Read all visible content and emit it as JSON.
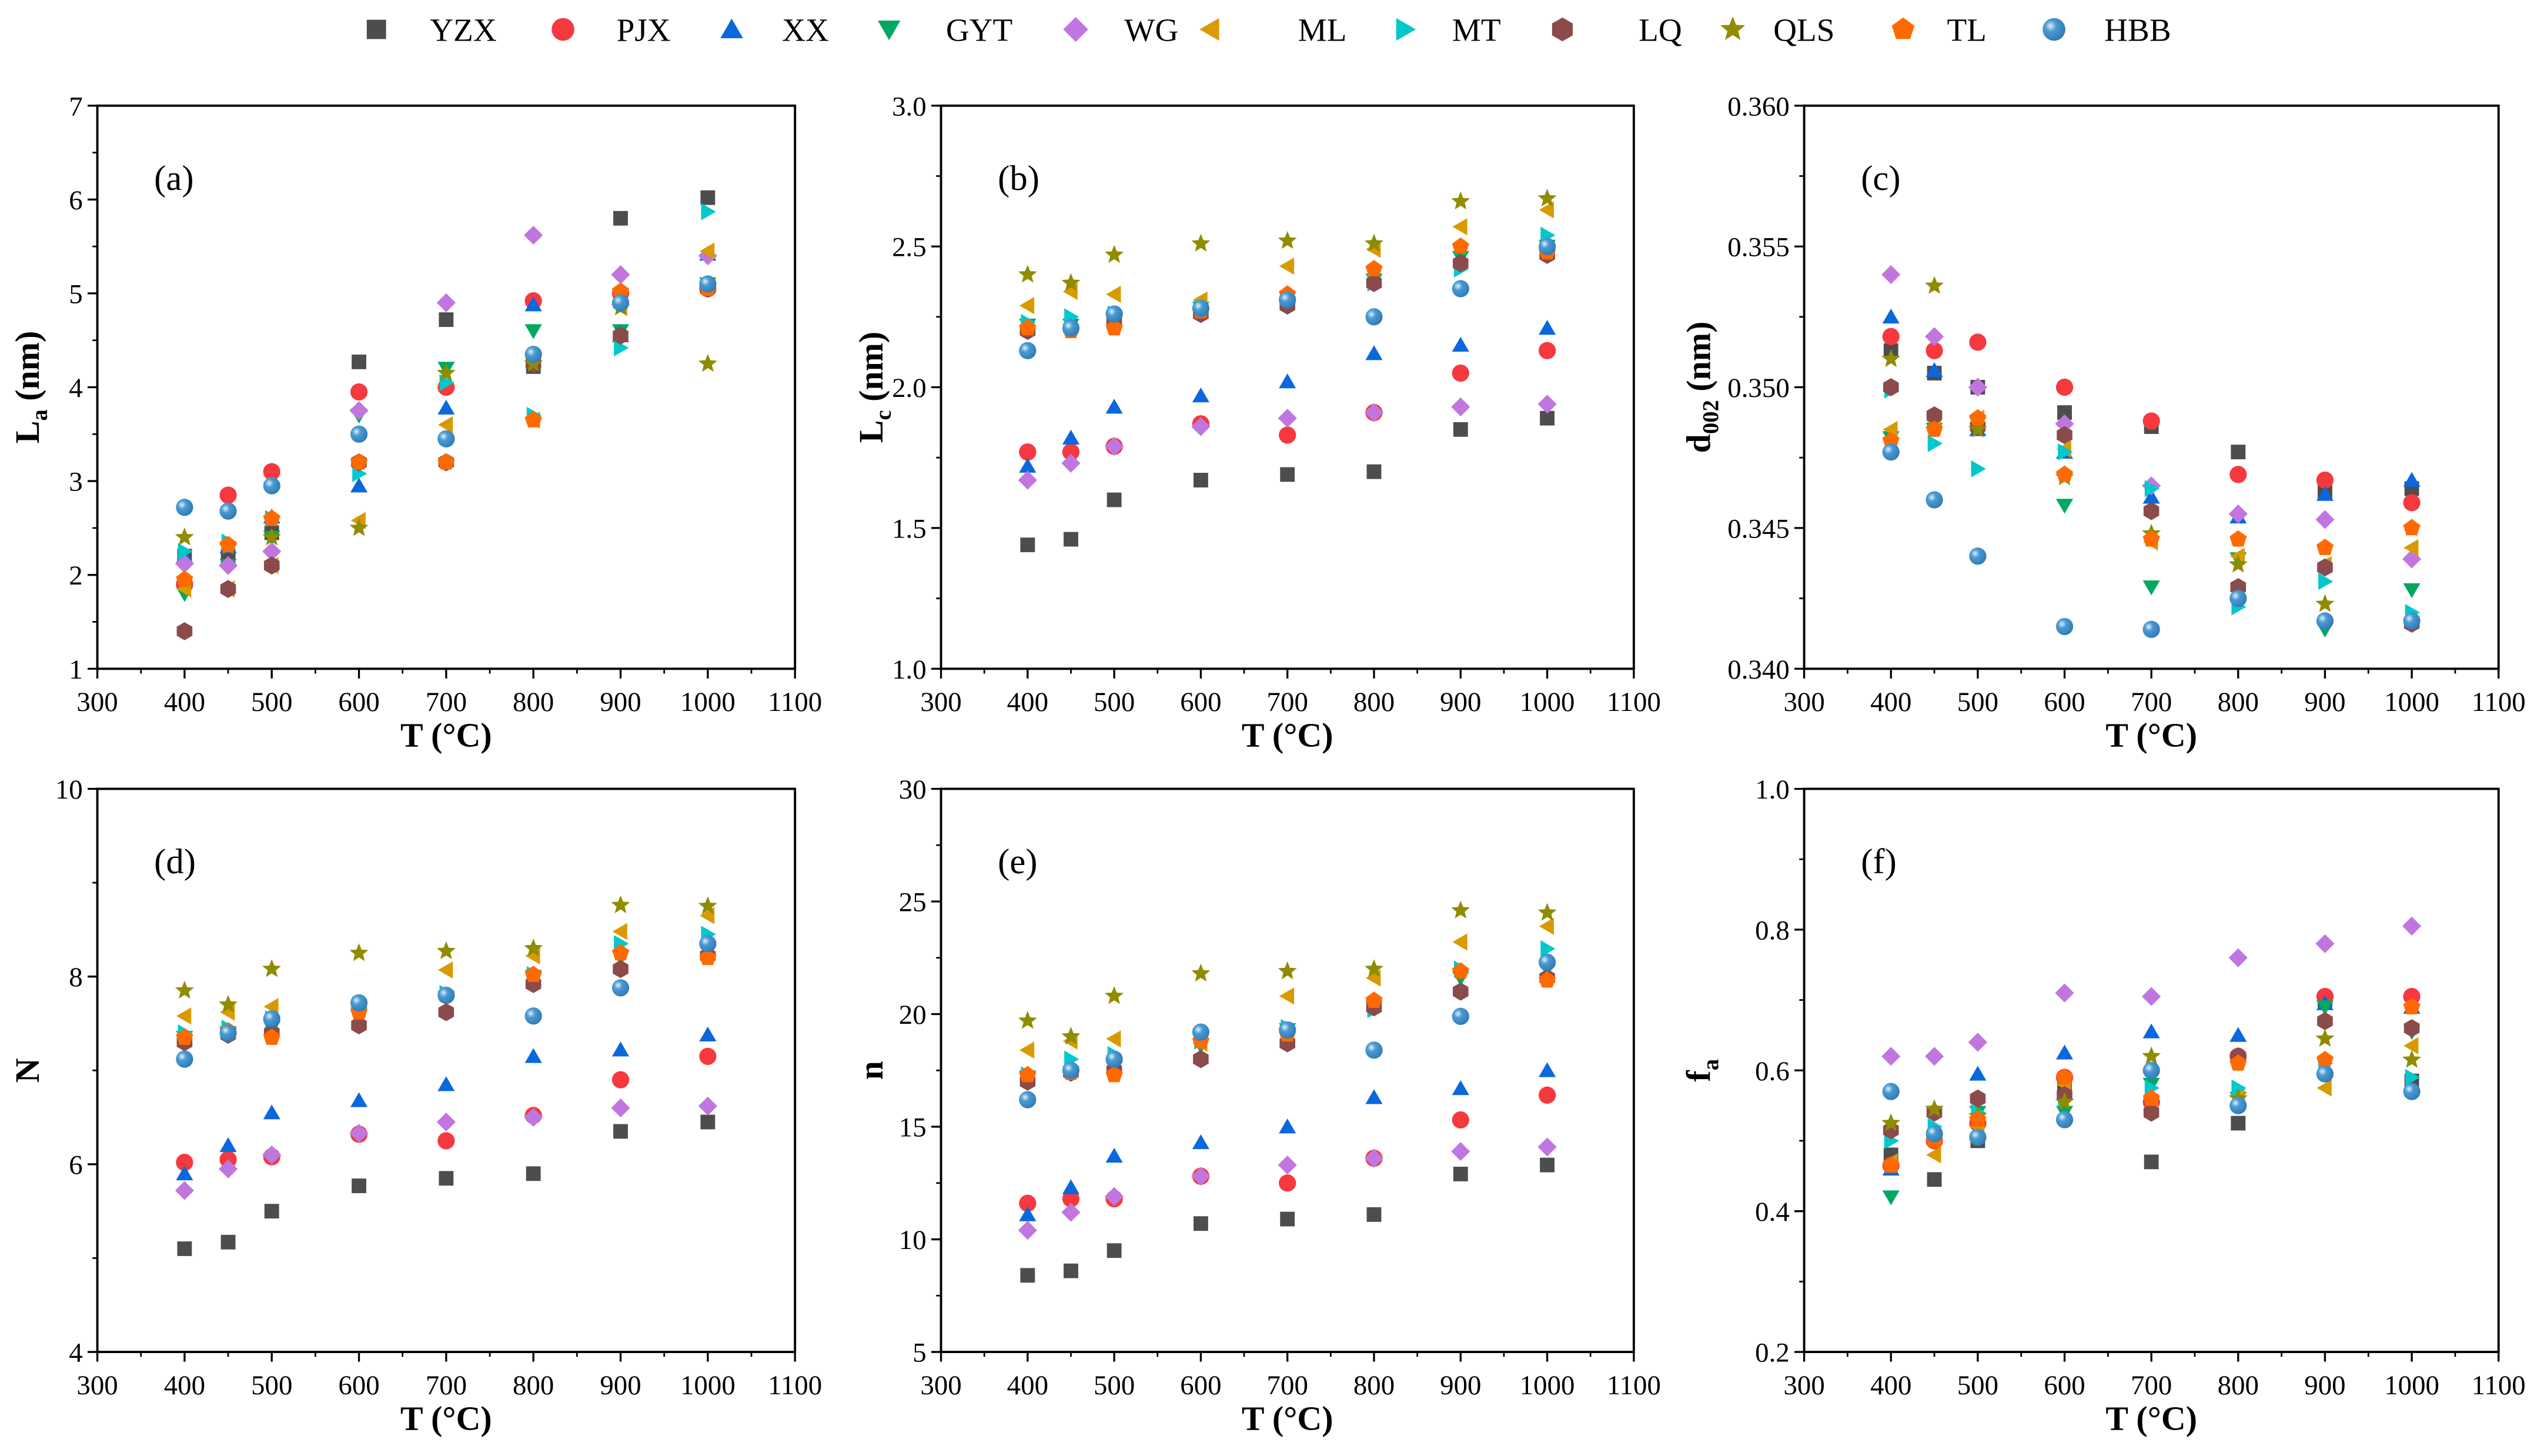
{
  "chart_data": {
    "type": "scatter",
    "x": [
      400,
      450,
      500,
      600,
      700,
      800,
      900,
      1000
    ],
    "series": [
      {
        "name": "YZX",
        "marker": "square",
        "color": "#4d4d4d"
      },
      {
        "name": "PJX",
        "marker": "circle",
        "color": "#f5393e"
      },
      {
        "name": "XX",
        "marker": "triangle-up",
        "color": "#0a68dc"
      },
      {
        "name": "GYT",
        "marker": "triangle-down",
        "color": "#00a862"
      },
      {
        "name": "WG",
        "marker": "diamond",
        "color": "#c176df"
      },
      {
        "name": "ML",
        "marker": "triangle-left",
        "color": "#d99a00"
      },
      {
        "name": "MT",
        "marker": "triangle-right",
        "color": "#00c8cc"
      },
      {
        "name": "LQ",
        "marker": "hexagon",
        "color": "#8b4b4b"
      },
      {
        "name": "QLS",
        "marker": "star",
        "color": "#8f8c00"
      },
      {
        "name": "TL",
        "marker": "pentagon",
        "color": "#ff6a00"
      },
      {
        "name": "HBB",
        "marker": "sphere",
        "color": "#4a9ad2"
      }
    ],
    "legend_placement": "top",
    "panels": [
      {
        "label": "(a)",
        "ylabel": {
          "main": "L",
          "sub": "a",
          "unit": " (nm)"
        },
        "xlabel": "T (°C)",
        "xlim": [
          300,
          1100
        ],
        "xticks": [
          300,
          400,
          500,
          600,
          700,
          800,
          900,
          1000,
          1100
        ],
        "ylim": [
          1,
          7
        ],
        "yticks": [
          "1",
          "2",
          "3",
          "4",
          "5",
          "6",
          "7"
        ],
        "values": [
          [
            2.2,
            2.2,
            2.45,
            4.27,
            4.72,
            4.22,
            5.8,
            6.02
          ],
          [
            1.9,
            2.85,
            3.1,
            3.95,
            4.0,
            4.92,
            5.0,
            5.05
          ],
          [
            2.2,
            2.3,
            2.62,
            2.95,
            3.78,
            4.88,
            4.55,
            5.42
          ],
          [
            1.8,
            2.1,
            2.4,
            3.7,
            4.2,
            4.6,
            4.6,
            5.1
          ],
          [
            2.12,
            2.1,
            2.25,
            3.75,
            4.9,
            5.62,
            5.2,
            5.4
          ],
          [
            1.85,
            1.85,
            2.1,
            2.58,
            3.6,
            3.65,
            4.85,
            5.45
          ],
          [
            2.25,
            2.35,
            2.6,
            3.08,
            4.05,
            3.7,
            4.42,
            5.87
          ],
          [
            1.4,
            1.85,
            2.1,
            3.2,
            3.2,
            4.25,
            4.55,
            5.05
          ],
          [
            2.4,
            2.3,
            2.4,
            2.5,
            4.15,
            4.25,
            4.85,
            4.25
          ],
          [
            1.95,
            2.32,
            2.6,
            3.2,
            3.2,
            3.65,
            5.02,
            5.05
          ],
          [
            2.72,
            2.68,
            2.95,
            3.5,
            3.45,
            4.35,
            4.9,
            5.1
          ]
        ]
      },
      {
        "label": "(b)",
        "ylabel": {
          "main": "L",
          "sub": "c",
          "unit": " (nm)"
        },
        "xlabel": "T (°C)",
        "xlim": [
          300,
          1100
        ],
        "xticks": [
          300,
          400,
          500,
          600,
          700,
          800,
          900,
          1000,
          1100
        ],
        "ylim": [
          1.0,
          3.0
        ],
        "yticks": [
          "1.0",
          "1.5",
          "2.0",
          "2.5",
          "3.0"
        ],
        "values": [
          [
            1.44,
            1.46,
            1.6,
            1.67,
            1.69,
            1.7,
            1.85,
            1.89
          ],
          [
            1.77,
            1.77,
            1.79,
            1.87,
            1.83,
            1.91,
            2.05,
            2.13
          ],
          [
            1.72,
            1.82,
            1.93,
            1.97,
            2.02,
            2.12,
            2.15,
            2.21
          ],
          [
            2.22,
            2.22,
            2.25,
            2.28,
            2.3,
            2.38,
            2.46,
            2.5
          ],
          [
            1.67,
            1.73,
            1.79,
            1.86,
            1.89,
            1.91,
            1.93,
            1.94
          ],
          [
            2.29,
            2.34,
            2.33,
            2.31,
            2.43,
            2.49,
            2.57,
            2.63
          ],
          [
            2.23,
            2.25,
            2.26,
            2.28,
            2.31,
            2.37,
            2.42,
            2.54
          ],
          [
            2.2,
            2.21,
            2.23,
            2.26,
            2.29,
            2.37,
            2.44,
            2.47
          ],
          [
            2.4,
            2.37,
            2.47,
            2.51,
            2.52,
            2.51,
            2.66,
            2.67
          ],
          [
            2.21,
            2.2,
            2.21,
            2.27,
            2.33,
            2.42,
            2.5,
            2.48
          ],
          [
            2.13,
            2.21,
            2.26,
            2.28,
            2.31,
            2.25,
            2.35,
            2.5
          ]
        ]
      },
      {
        "label": "(c)",
        "ylabel": {
          "main": "d",
          "sub": "002",
          "unit": " (nm)"
        },
        "xlabel": "T (°C)",
        "xlim": [
          300,
          1100
        ],
        "xticks": [
          300,
          400,
          500,
          600,
          700,
          800,
          900,
          1000,
          1100
        ],
        "ylim": [
          0.34,
          0.36
        ],
        "yticks": [
          "0.340",
          "0.345",
          "0.350",
          "0.355",
          "0.360"
        ],
        "values": [
          [
            0.3513,
            0.3505,
            0.35,
            0.3491,
            0.3486,
            0.3477,
            0.3463,
            0.3464
          ],
          [
            0.3518,
            0.3513,
            0.3516,
            0.35,
            0.3488,
            0.3469,
            0.3467,
            0.3459
          ],
          [
            0.3525,
            0.3506,
            0.3485,
            0.3477,
            0.3461,
            0.3454,
            0.3462,
            0.3467
          ],
          [
            0.3482,
            0.3485,
            0.3487,
            0.3458,
            0.3429,
            0.3439,
            0.3414,
            0.3428
          ],
          [
            0.354,
            0.3518,
            0.35,
            0.3487,
            0.3465,
            0.3455,
            0.3453,
            0.3439
          ],
          [
            0.3485,
            0.3488,
            0.3489,
            0.3478,
            0.3445,
            0.344,
            0.3437,
            0.3443
          ],
          [
            0.3499,
            0.348,
            0.3471,
            0.3477,
            0.3464,
            0.3422,
            0.3431,
            0.342
          ],
          [
            0.35,
            0.349,
            0.3486,
            0.3483,
            0.3456,
            0.3429,
            0.3436,
            0.3416
          ],
          [
            0.351,
            0.3536,
            0.3485,
            0.3468,
            0.3448,
            0.3437,
            0.3423,
            0.345
          ],
          [
            0.3481,
            0.3485,
            0.3489,
            0.3469,
            0.3446,
            0.3446,
            0.3443,
            0.345
          ],
          [
            0.3477,
            0.346,
            0.344,
            0.3415,
            0.3414,
            0.3425,
            0.3417,
            0.3417
          ]
        ]
      },
      {
        "label": "(d)",
        "ylabel": {
          "main": "N",
          "sub": "",
          "unit": ""
        },
        "xlabel": "T (°C)",
        "xlim": [
          300,
          1100
        ],
        "xticks": [
          300,
          400,
          500,
          600,
          700,
          800,
          900,
          1000,
          1100
        ],
        "ylim": [
          4,
          10
        ],
        "yticks": [
          "4",
          "6",
          "8",
          "10"
        ],
        "values": [
          [
            5.1,
            5.17,
            5.5,
            5.77,
            5.85,
            5.9,
            6.35,
            6.45
          ],
          [
            6.02,
            6.05,
            6.08,
            6.32,
            6.25,
            6.52,
            6.9,
            7.15
          ],
          [
            5.9,
            6.2,
            6.55,
            6.68,
            6.85,
            7.15,
            7.22,
            7.38
          ],
          [
            7.35,
            7.4,
            7.45,
            7.6,
            7.78,
            8.0,
            8.2,
            8.3
          ],
          [
            5.72,
            5.95,
            6.1,
            6.33,
            6.45,
            6.5,
            6.6,
            6.62
          ],
          [
            7.58,
            7.62,
            7.68,
            7.65,
            8.07,
            8.22,
            8.48,
            8.65
          ],
          [
            7.4,
            7.45,
            7.55,
            7.7,
            7.82,
            8.02,
            8.35,
            8.45
          ],
          [
            7.3,
            7.38,
            7.4,
            7.48,
            7.62,
            7.92,
            8.08,
            8.22
          ],
          [
            7.85,
            7.7,
            8.08,
            8.25,
            8.27,
            8.3,
            8.76,
            8.75
          ],
          [
            7.35,
            7.42,
            7.35,
            7.62,
            7.8,
            8.02,
            8.25,
            8.2
          ],
          [
            7.12,
            7.4,
            7.55,
            7.72,
            7.8,
            7.58,
            7.88,
            8.35
          ]
        ]
      },
      {
        "label": "(e)",
        "ylabel": {
          "main": "n",
          "sub": "",
          "unit": ""
        },
        "xlabel": "T (°C)",
        "xlim": [
          300,
          1100
        ],
        "xticks": [
          300,
          400,
          500,
          600,
          700,
          800,
          900,
          1000,
          1100
        ],
        "ylim": [
          5,
          30
        ],
        "yticks": [
          "5",
          "10",
          "15",
          "20",
          "25",
          "30"
        ],
        "values": [
          [
            8.4,
            8.6,
            9.5,
            10.7,
            10.9,
            11.1,
            12.9,
            13.3
          ],
          [
            11.6,
            11.8,
            11.8,
            12.8,
            12.5,
            13.6,
            15.3,
            16.4
          ],
          [
            11.1,
            12.3,
            13.7,
            14.3,
            15.0,
            16.3,
            16.7,
            17.5
          ],
          [
            17.2,
            17.4,
            17.6,
            18.6,
            19.3,
            20.3,
            21.6,
            22.0
          ],
          [
            10.4,
            11.2,
            11.9,
            12.8,
            13.3,
            13.6,
            13.9,
            14.1
          ],
          [
            18.4,
            18.8,
            18.9,
            18.7,
            20.8,
            21.6,
            23.2,
            23.9
          ],
          [
            17.3,
            18.0,
            18.2,
            18.8,
            19.4,
            20.2,
            22.0,
            22.9
          ],
          [
            17.0,
            17.4,
            17.5,
            18.0,
            18.7,
            20.3,
            21.0,
            21.6
          ],
          [
            19.7,
            19.0,
            20.8,
            21.8,
            21.9,
            22.0,
            24.6,
            24.5
          ],
          [
            17.3,
            17.4,
            17.3,
            18.8,
            19.1,
            20.6,
            21.9,
            21.5
          ],
          [
            16.2,
            17.5,
            18.0,
            19.2,
            19.3,
            18.4,
            19.9,
            22.3
          ]
        ]
      },
      {
        "label": "(f)",
        "ylabel": {
          "main": "f",
          "sub": "a",
          "unit": ""
        },
        "xlabel": "T (°C)",
        "xlim": [
          300,
          1100
        ],
        "xticks": [
          300,
          400,
          500,
          600,
          700,
          800,
          900,
          1000,
          1100
        ],
        "ylim": [
          0.2,
          1.0
        ],
        "yticks": [
          "0.2",
          "0.4",
          "0.6",
          "0.8",
          "1.0"
        ],
        "values": [
          [
            0.48,
            0.445,
            0.5,
            0.575,
            0.47,
            0.525,
            0.7,
            0.585
          ],
          [
            0.465,
            0.5,
            0.525,
            0.59,
            0.555,
            0.62,
            0.705,
            0.705
          ],
          [
            0.46,
            0.51,
            0.595,
            0.625,
            0.655,
            0.65,
            0.695,
            0.69
          ],
          [
            0.42,
            0.54,
            0.54,
            0.54,
            0.58,
            0.56,
            0.69,
            0.655
          ],
          [
            0.62,
            0.62,
            0.64,
            0.71,
            0.705,
            0.76,
            0.78,
            0.805
          ],
          [
            0.47,
            0.48,
            0.52,
            0.58,
            0.545,
            0.565,
            0.575,
            0.635
          ],
          [
            0.5,
            0.52,
            0.54,
            0.56,
            0.575,
            0.575,
            0.61,
            0.59
          ],
          [
            0.515,
            0.54,
            0.56,
            0.565,
            0.54,
            0.62,
            0.67,
            0.66
          ],
          [
            0.525,
            0.545,
            0.535,
            0.555,
            0.62,
            0.56,
            0.645,
            0.615
          ],
          [
            0.465,
            0.5,
            0.53,
            0.59,
            0.56,
            0.61,
            0.615,
            0.69
          ],
          [
            0.57,
            0.51,
            0.505,
            0.53,
            0.6,
            0.55,
            0.595,
            0.57
          ]
        ]
      }
    ]
  }
}
